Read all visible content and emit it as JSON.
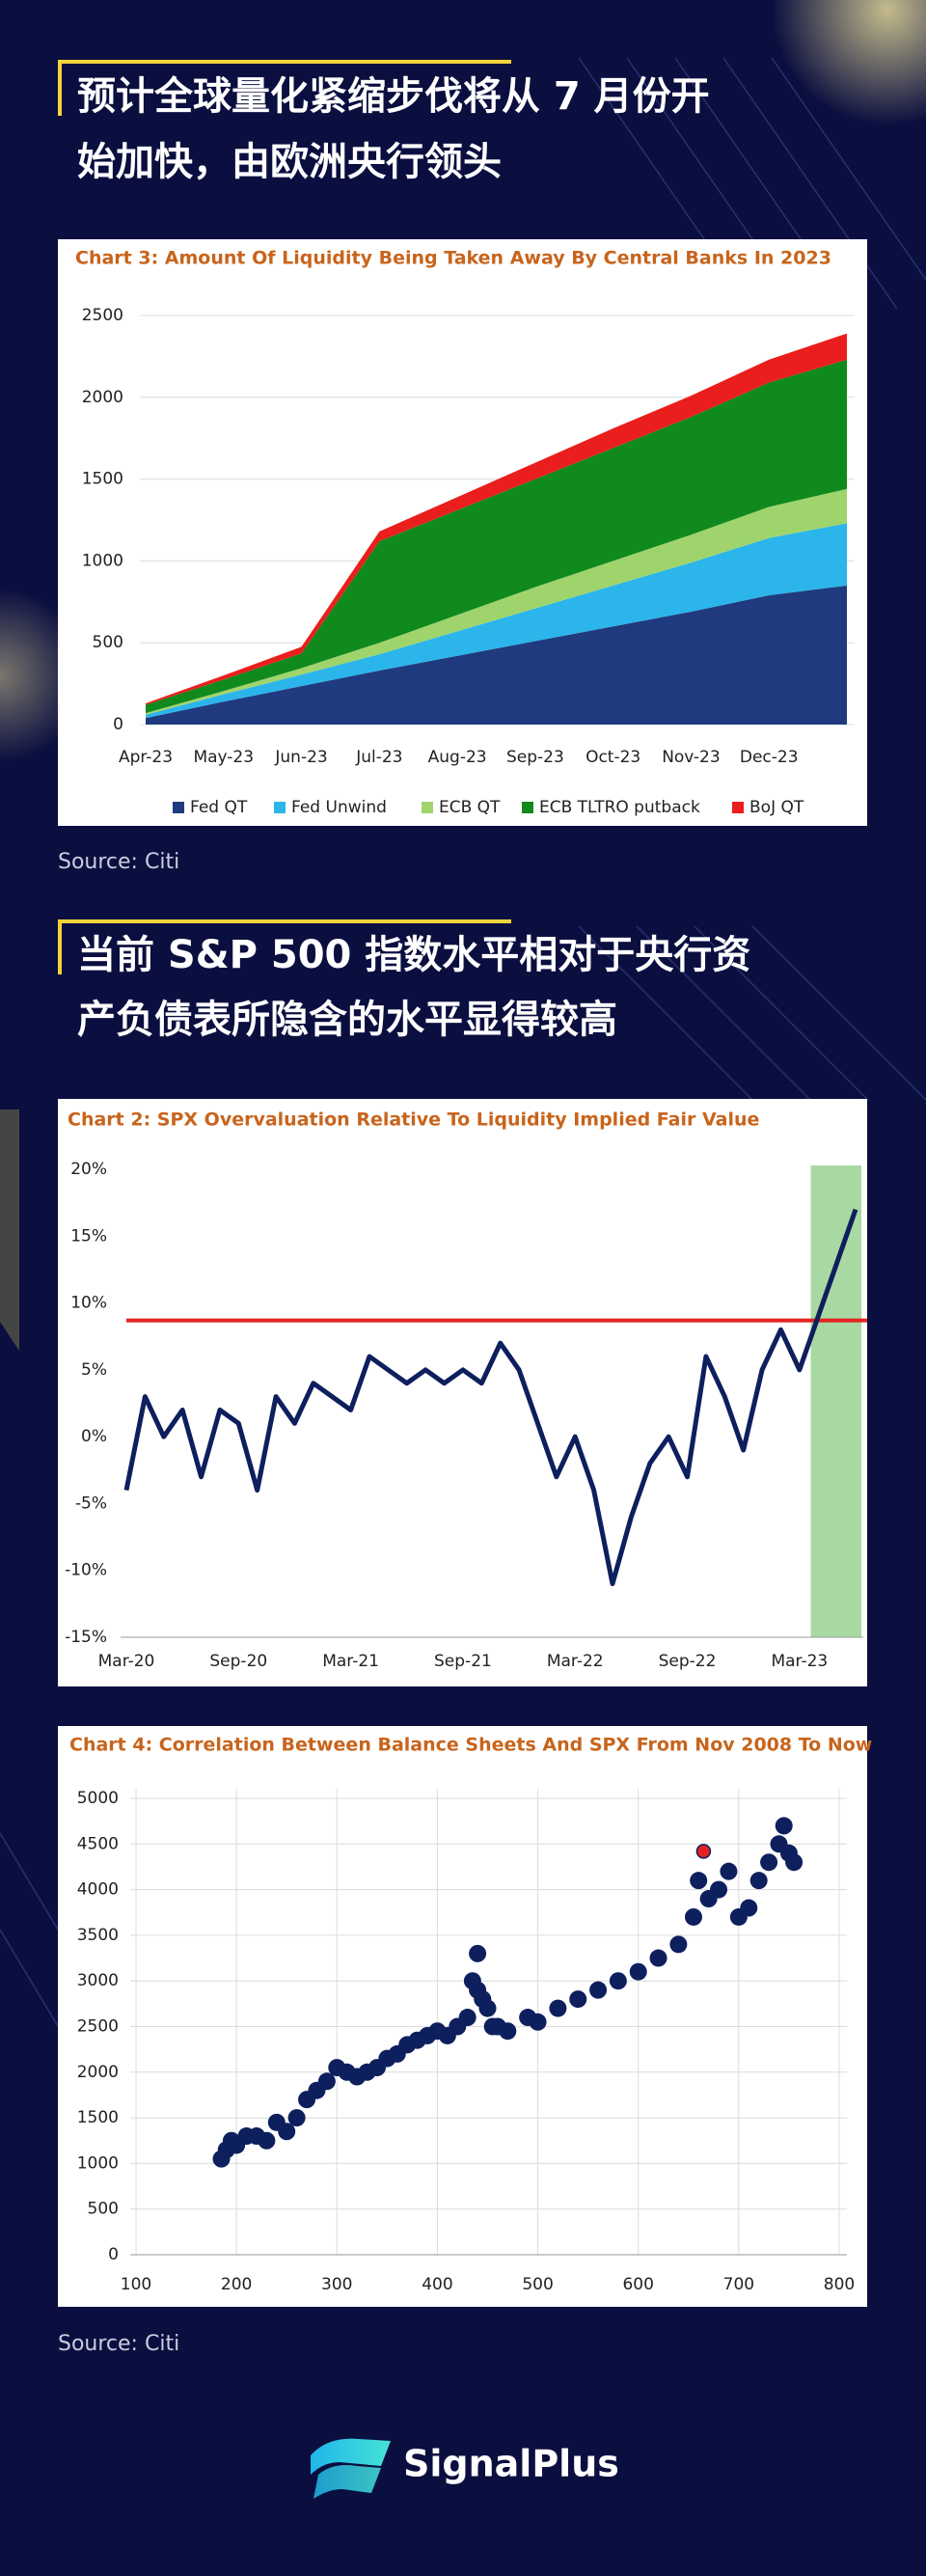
{
  "headings": [
    {
      "lines": [
        "预计全球量化紧缩步伐将从 7 月份开",
        "始加快，由欧洲央行领头"
      ]
    },
    {
      "lines": [
        "当前 S&P 500 指数水平相对于央行资",
        "产负债表所隐含的水平显得较高"
      ]
    }
  ],
  "sources": [
    "Source: Citi",
    "Source: Citi"
  ],
  "logo": "SignalPlus",
  "chart_data": [
    {
      "type": "stacked_area",
      "title": "Chart 3: Amount Of Liquidity Being Taken Away By Central Banks In 2023",
      "categories": [
        "Apr-23",
        "May-23",
        "Jun-23",
        "Jul-23",
        "Aug-23",
        "Sep-23",
        "Oct-23",
        "Nov-23",
        "Dec-23",
        null
      ],
      "series": [
        {
          "name": "Fed QT",
          "color": "#1f3a7e",
          "values": [
            40,
            140,
            235,
            330,
            420,
            510,
            600,
            690,
            790,
            850
          ]
        },
        {
          "name": "Fed Unwind",
          "color": "#2bb5ea",
          "values": [
            20,
            45,
            70,
            100,
            150,
            200,
            250,
            300,
            350,
            380
          ]
        },
        {
          "name": "ECB QT",
          "color": "#9fd46c",
          "values": [
            10,
            20,
            40,
            70,
            100,
            130,
            150,
            170,
            190,
            210
          ]
        },
        {
          "name": "ECB TLTRO putback",
          "color": "#10891d",
          "values": [
            50,
            70,
            90,
            620,
            640,
            660,
            690,
            720,
            760,
            790
          ]
        },
        {
          "name": "BoJ QT",
          "color": "#ea1e1c",
          "values": [
            10,
            25,
            40,
            60,
            80,
            100,
            120,
            130,
            140,
            160
          ]
        }
      ],
      "ylim": [
        0,
        2600
      ],
      "yticks": [
        0,
        500,
        1000,
        1500,
        2000,
        2500
      ],
      "grid": true,
      "legend": "bottom"
    },
    {
      "type": "line",
      "title": "Chart 2: SPX Overvaluation Relative To Liquidity Implied Fair Value",
      "categories": [
        "Mar-20",
        null,
        null,
        null,
        null,
        null,
        "Sep-20",
        null,
        null,
        null,
        null,
        null,
        "Mar-21",
        null,
        null,
        null,
        null,
        null,
        "Sep-21",
        null,
        null,
        null,
        null,
        null,
        "Mar-22",
        null,
        null,
        null,
        null,
        null,
        "Sep-22",
        null,
        null,
        null,
        null,
        null,
        "Mar-23",
        null,
        null,
        null
      ],
      "series": [
        {
          "color": "#0e1f5e",
          "values": [
            -4,
            3,
            0,
            2,
            -3,
            2,
            1,
            -4,
            3,
            1,
            4,
            3,
            2,
            6,
            5,
            4,
            5,
            4,
            5,
            4,
            7,
            5,
            1,
            -3,
            0,
            -4,
            -11,
            -6,
            -2,
            0,
            -3,
            6,
            3,
            -1,
            5,
            8,
            5,
            9,
            13,
            17
          ]
        }
      ],
      "ylim": [
        -15,
        20
      ],
      "yticks": [
        {
          "value": -15,
          "label": "-15%"
        },
        {
          "value": -10,
          "label": "-10%"
        },
        {
          "value": -5,
          "label": "-5%"
        },
        {
          "value": 0,
          "label": "0%"
        },
        {
          "value": 5,
          "label": "5%"
        },
        {
          "value": 10,
          "label": "10%"
        },
        {
          "value": 15,
          "label": "15%"
        },
        {
          "value": 20,
          "label": "20%"
        }
      ],
      "grid": false,
      "hline": {
        "value": 8.7,
        "color": "#e42222"
      },
      "shade_color": "#a9d9a2"
    },
    {
      "type": "scatter",
      "title": "Chart 4: Correlation Between Balance Sheets And SPX From Nov 2008 To Now",
      "series": [
        {
          "color": "#0e1f5e",
          "x": [
            185,
            190,
            195,
            200,
            210,
            220,
            230,
            240,
            250,
            260,
            270,
            280,
            290,
            300,
            310,
            320,
            330,
            340,
            350,
            360,
            370,
            380,
            390,
            400,
            410,
            420,
            430,
            435,
            440,
            445,
            450,
            455,
            440,
            460,
            470,
            490,
            500,
            520,
            540,
            560,
            580,
            600,
            620,
            640,
            655,
            660,
            670,
            680,
            690,
            700,
            710,
            720,
            730,
            740,
            745,
            750,
            755
          ],
          "values": [
            1050,
            1150,
            1250,
            1200,
            1300,
            1300,
            1250,
            1450,
            1350,
            1500,
            1700,
            1800,
            1900,
            2050,
            2000,
            1950,
            2000,
            2050,
            2150,
            2200,
            2300,
            2350,
            2400,
            2450,
            2400,
            2500,
            2600,
            3000,
            3300,
            2800,
            2700,
            2500,
            2900,
            2500,
            2450,
            2600,
            2550,
            2700,
            2800,
            2900,
            3000,
            3100,
            3250,
            3400,
            3700,
            4100,
            3900,
            4000,
            4200,
            3700,
            3800,
            4100,
            4300,
            4500,
            4700,
            4400,
            4300
          ]
        },
        {
          "color": "#e42222",
          "x": [
            665
          ],
          "values": [
            4420
          ]
        }
      ],
      "xlim": [
        100,
        800
      ],
      "xticks": [
        100,
        200,
        300,
        400,
        500,
        600,
        700,
        800
      ],
      "ylim": [
        0,
        5000
      ],
      "yticks": [
        0,
        500,
        1000,
        1500,
        2000,
        2500,
        3000,
        3500,
        4000,
        4500,
        5000
      ],
      "grid": true
    }
  ]
}
